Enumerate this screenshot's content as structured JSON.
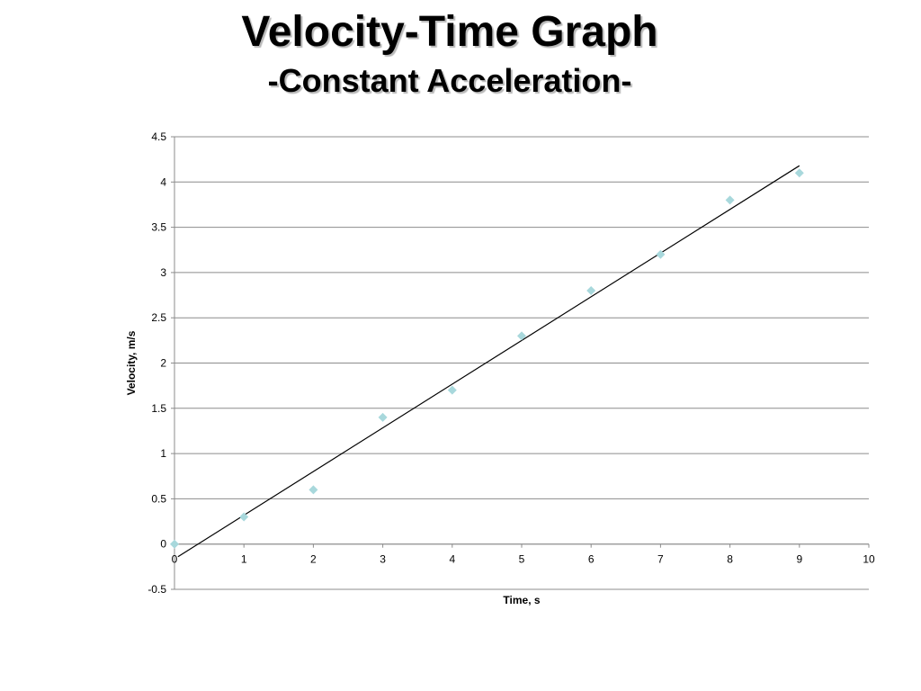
{
  "slide": {
    "title": "Velocity-Time Graph",
    "subtitle": "-Constant Acceleration-"
  },
  "chart_data": {
    "type": "scatter",
    "title": "",
    "xlabel": "Time, s",
    "ylabel": "Velocity, m/s",
    "xlim": [
      0,
      10
    ],
    "ylim": [
      -0.5,
      4.5
    ],
    "x_ticks": [
      0,
      1,
      2,
      3,
      4,
      5,
      6,
      7,
      8,
      9,
      10
    ],
    "y_ticks": [
      -0.5,
      0,
      0.5,
      1,
      1.5,
      2,
      2.5,
      3,
      3.5,
      4,
      4.5
    ],
    "grid": "horizontal",
    "legend": "none",
    "series": [
      {
        "x": [
          0,
          1,
          2,
          3,
          4,
          5,
          6,
          7,
          8,
          9
        ],
        "y": [
          0,
          0.3,
          0.6,
          1.4,
          1.7,
          2.3,
          2.8,
          3.2,
          3.8,
          4.1
        ],
        "marker": "diamond",
        "color": "#a8d8dc"
      }
    ],
    "trendline": {
      "type": "linear",
      "x": [
        0.05,
        9
      ],
      "y": [
        -0.14,
        4.18
      ],
      "color": "#000000"
    }
  }
}
